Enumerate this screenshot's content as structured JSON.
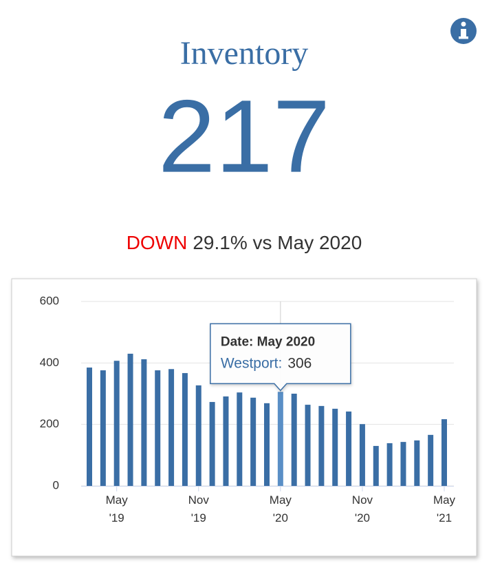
{
  "header": {
    "title": "Inventory",
    "value": 217,
    "change": {
      "direction": "DOWN",
      "text": "29.1% vs May 2020"
    }
  },
  "chart_data": {
    "type": "bar",
    "x": [
      "2019-03",
      "2019-04",
      "2019-05",
      "2019-06",
      "2019-07",
      "2019-08",
      "2019-09",
      "2019-10",
      "2019-11",
      "2019-12",
      "2020-01",
      "2020-02",
      "2020-03",
      "2020-04",
      "2020-05",
      "2020-06",
      "2020-07",
      "2020-08",
      "2020-09",
      "2020-10",
      "2020-11",
      "2020-12",
      "2021-01",
      "2021-02",
      "2021-03",
      "2021-04",
      "2021-05"
    ],
    "series": [
      {
        "name": "Westport",
        "color": "#3a6ea5",
        "values": [
          385,
          376,
          407,
          430,
          412,
          376,
          380,
          367,
          327,
          273,
          291,
          304,
          287,
          269,
          306,
          300,
          264,
          260,
          251,
          242,
          201,
          130,
          139,
          143,
          148,
          166,
          217
        ]
      }
    ],
    "ylim": [
      0,
      600
    ],
    "yticks": [
      0,
      200,
      400,
      600
    ],
    "grid": true,
    "xticks": [
      {
        "value": "2019-05",
        "label": [
          "May",
          "'19"
        ]
      },
      {
        "value": "2019-11",
        "label": [
          "Nov",
          "'19"
        ]
      },
      {
        "value": "2020-05",
        "label": [
          "May",
          "'20"
        ]
      },
      {
        "value": "2020-11",
        "label": [
          "Nov",
          "'20"
        ]
      },
      {
        "value": "2021-05",
        "label": [
          "May",
          "'21"
        ]
      }
    ],
    "tooltip": {
      "index": 14,
      "title": "Date: May 2020",
      "series_label": "Westport:"
    }
  }
}
